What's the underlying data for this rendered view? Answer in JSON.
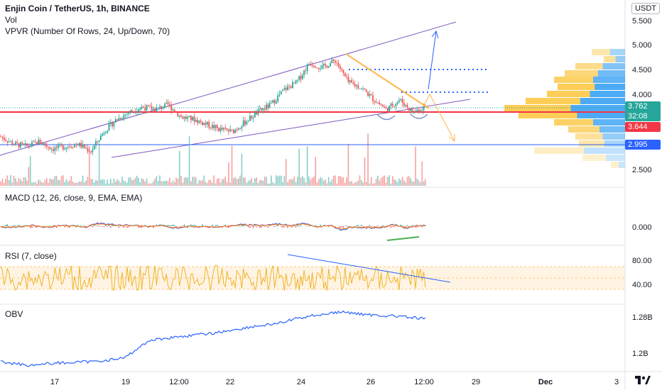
{
  "header": {
    "title": "Enjin Coin / TetherUS, 1h, BINANCE",
    "vol_label": "Vol",
    "vpvr_label": "VPVR (Number Of Rows, 24, Up/Down, 70)",
    "currency": "USDT"
  },
  "price_axis": {
    "ticks": [
      "5.500",
      "5.000",
      "4.500",
      "4.000",
      "2.500"
    ],
    "tags": {
      "current": "3.762",
      "countdown": "32:08",
      "red_level": "3.644",
      "blue_level": "2.995"
    },
    "colors": {
      "current": "#26a69a",
      "red_level": "#f23645",
      "blue_level": "#2962ff"
    }
  },
  "macd": {
    "label": "MACD (12, 26, close, 9, EMA, EMA)",
    "ticks": [
      "0.000"
    ]
  },
  "rsi": {
    "label": "RSI (7, close)",
    "ticks": [
      "80.00",
      "40.00"
    ]
  },
  "obv": {
    "label": "OBV",
    "ticks": [
      "1.28B",
      "1.2B"
    ]
  },
  "time_axis": {
    "labels": [
      "17",
      "19",
      "12:00",
      "22",
      "24",
      "26",
      "12:00",
      "29",
      "Dec",
      "3"
    ]
  },
  "chart_data": {
    "type": "candlestick",
    "symbol": "Enjin Coin / TetherUS",
    "interval": "1h",
    "exchange": "BINANCE",
    "price_range": [
      2.3,
      5.6
    ],
    "key_levels": [
      3.644,
      2.995
    ],
    "current_price": 3.762,
    "approx_closes": [
      3.2,
      3.05,
      3.0,
      3.1,
      2.95,
      3.0,
      3.05,
      2.9,
      3.3,
      3.55,
      3.7,
      3.8,
      3.75,
      3.85,
      3.6,
      3.55,
      3.45,
      3.35,
      3.3,
      3.5,
      3.7,
      3.85,
      4.15,
      4.3,
      4.7,
      4.6,
      4.75,
      4.3,
      4.2,
      3.95,
      3.75,
      3.95,
      3.7,
      3.8
    ]
  }
}
